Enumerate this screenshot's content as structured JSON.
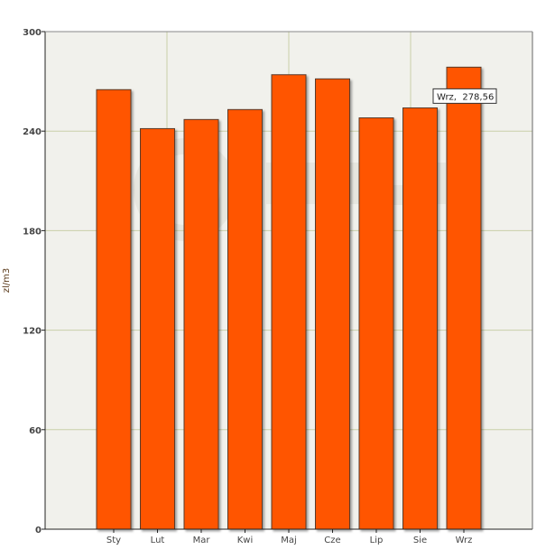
{
  "chart_data": {
    "type": "bar",
    "title": "",
    "xlabel": "",
    "ylabel": "zl/m3",
    "categories": [
      "Sty",
      "Lut",
      "Mar",
      "Kwi",
      "Maj",
      "Cze",
      "Lip",
      "Sie",
      "Wrz"
    ],
    "values": [
      265.0,
      241.5,
      247.0,
      253.0,
      274.0,
      271.5,
      248.0,
      254.0,
      278.56
    ],
    "ylim": [
      0,
      300
    ],
    "yticks": [
      0,
      60,
      120,
      180,
      240,
      300
    ],
    "grid": true,
    "tooltip": {
      "category": "Wrz",
      "text": "Wrz,  278,56"
    },
    "colors": {
      "bar": "#ff5500",
      "bar_edge": "#5a3a2a",
      "plot_bg": "#f1f1ec",
      "grid": "#c9cfa9",
      "axis": "#222222",
      "tick_text": "#444444",
      "ylabel_text": "#5a3a1a"
    }
  }
}
